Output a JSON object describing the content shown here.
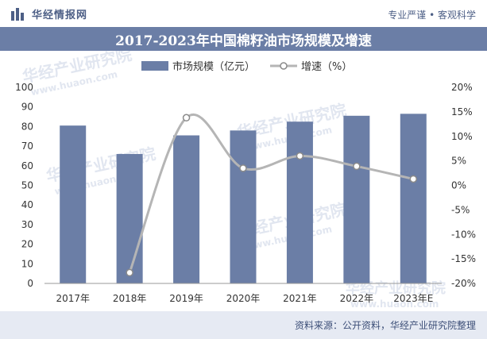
{
  "header": {
    "brand_name": "华经情报网",
    "tagline": "专业严谨 • 客观科学",
    "title": "2017-2023年中国棉籽油市场规模及增速"
  },
  "footer": {
    "source": "资料来源：公开资料，华经产业研究院整理"
  },
  "watermark": {
    "text": "华经产业研究院",
    "url_text": "www.huaon.com"
  },
  "colors": {
    "bar": "#6b7ea6",
    "line": "#b5b5b5",
    "title_band": "#6b7ea6",
    "footer": "#e6eaf3"
  },
  "chart_data": {
    "type": "bar",
    "title": "2017-2023年中国棉籽油市场规模及增速",
    "categories": [
      "2017年",
      "2018年",
      "2019年",
      "2020年",
      "2021年",
      "2022年",
      "2023年E"
    ],
    "series": [
      {
        "name": "市场规模（亿元）",
        "type": "bar",
        "axis": "left",
        "values": [
          80.5,
          66,
          75.5,
          78,
          82.5,
          85.5,
          86.5
        ]
      },
      {
        "name": "增速（%）",
        "type": "line",
        "axis": "right",
        "values": [
          null,
          -17.8,
          13.8,
          3.5,
          6.0,
          3.9,
          1.3
        ]
      }
    ],
    "y_left": {
      "min": 0,
      "max": 100,
      "step": 10,
      "ticks": [
        "0",
        "10",
        "20",
        "30",
        "40",
        "50",
        "60",
        "70",
        "80",
        "90",
        "100"
      ]
    },
    "y_right": {
      "min": -20,
      "max": 20,
      "step": 5,
      "ticks": [
        "-20%",
        "-15%",
        "-10%",
        "-5%",
        "0%",
        "5%",
        "10%",
        "15%",
        "20%"
      ]
    },
    "legend": {
      "position": "top-center",
      "labels": [
        "市场规模（亿元）",
        "增速（%）"
      ]
    }
  }
}
